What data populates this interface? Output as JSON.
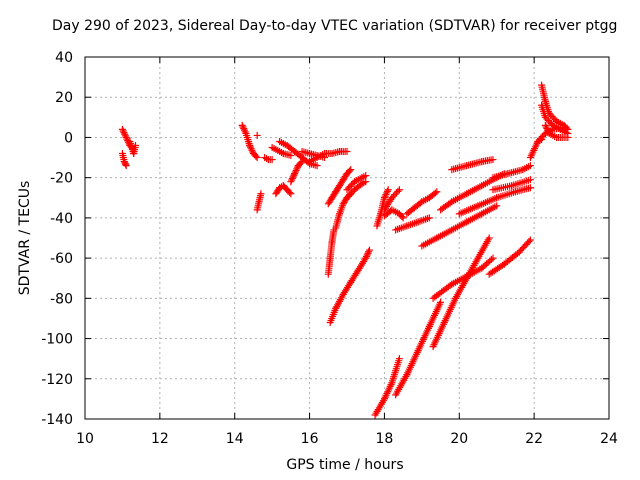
{
  "chart_data": {
    "type": "scatter",
    "title": "Day 290 of 2023, Sidereal Day-to-day VTEC variation (SDTVAR) for receiver ptgg",
    "xlabel": "GPS time / hours",
    "ylabel": "SDTVAR / TECUs",
    "xlim": [
      10,
      24
    ],
    "ylim": [
      -140,
      40
    ],
    "xticks": [
      "10",
      "12",
      "14",
      "16",
      "18",
      "20",
      "22",
      "24"
    ],
    "yticks": [
      "-140",
      "-120",
      "-100",
      "-80",
      "-60",
      "-40",
      "-20",
      "0",
      "20",
      "40"
    ],
    "grid": true,
    "marker": "+",
    "color": "#ff0000",
    "series_segments": [
      [
        [
          11.0,
          4
        ],
        [
          11.1,
          0
        ],
        [
          11.2,
          -4
        ],
        [
          11.3,
          -6
        ]
      ],
      [
        [
          11.0,
          -8
        ],
        [
          11.05,
          -12
        ],
        [
          11.1,
          -14
        ]
      ],
      [
        [
          11.2,
          -2
        ],
        [
          11.3,
          -8
        ],
        [
          11.35,
          -4
        ]
      ],
      [
        [
          14.2,
          6
        ],
        [
          14.3,
          2
        ],
        [
          14.4,
          -4
        ],
        [
          14.5,
          -8
        ],
        [
          14.6,
          -10
        ]
      ],
      [
        [
          14.6,
          1
        ]
      ],
      [
        [
          14.7,
          -28
        ],
        [
          14.65,
          -32
        ],
        [
          14.6,
          -36
        ]
      ],
      [
        [
          14.8,
          -10
        ],
        [
          14.9,
          -11
        ],
        [
          15.0,
          -11
        ]
      ],
      [
        [
          15.0,
          -5
        ],
        [
          15.3,
          -8
        ],
        [
          15.5,
          -9
        ]
      ],
      [
        [
          15.1,
          -28
        ],
        [
          15.2,
          -25
        ],
        [
          15.3,
          -24
        ],
        [
          15.4,
          -26
        ],
        [
          15.5,
          -28
        ]
      ],
      [
        [
          15.2,
          -2
        ],
        [
          15.4,
          -4
        ],
        [
          15.6,
          -7
        ],
        [
          15.8,
          -10
        ],
        [
          16.0,
          -13
        ],
        [
          16.2,
          -14
        ]
      ],
      [
        [
          15.5,
          -22
        ],
        [
          15.6,
          -18
        ],
        [
          15.7,
          -14
        ],
        [
          15.8,
          -12
        ]
      ],
      [
        [
          15.8,
          -7
        ],
        [
          16.0,
          -8
        ],
        [
          16.2,
          -9
        ],
        [
          16.4,
          -10
        ]
      ],
      [
        [
          16.0,
          -12
        ],
        [
          16.2,
          -10
        ],
        [
          16.4,
          -8
        ],
        [
          16.6,
          -8
        ],
        [
          16.8,
          -7
        ],
        [
          17.0,
          -7
        ]
      ],
      [
        [
          16.5,
          -33
        ],
        [
          16.6,
          -30
        ],
        [
          16.7,
          -27
        ],
        [
          16.8,
          -24
        ],
        [
          16.9,
          -21
        ],
        [
          17.0,
          -18
        ],
        [
          17.1,
          -16
        ]
      ],
      [
        [
          16.5,
          -68
        ],
        [
          16.55,
          -60
        ],
        [
          16.6,
          -52
        ],
        [
          16.65,
          -46
        ]
      ],
      [
        [
          16.7,
          -45
        ],
        [
          16.8,
          -38
        ],
        [
          16.9,
          -33
        ],
        [
          17.0,
          -30
        ],
        [
          17.1,
          -28
        ]
      ],
      [
        [
          16.55,
          -92
        ],
        [
          16.7,
          -85
        ],
        [
          16.9,
          -78
        ],
        [
          17.1,
          -72
        ],
        [
          17.3,
          -66
        ],
        [
          17.5,
          -60
        ],
        [
          17.6,
          -56
        ]
      ],
      [
        [
          17.0,
          -30
        ],
        [
          17.2,
          -26
        ],
        [
          17.4,
          -23
        ],
        [
          17.5,
          -22
        ]
      ],
      [
        [
          17.0,
          -26
        ],
        [
          17.2,
          -22
        ],
        [
          17.4,
          -20
        ],
        [
          17.5,
          -19
        ]
      ],
      [
        [
          17.8,
          -44
        ],
        [
          17.9,
          -38
        ],
        [
          18.0,
          -30
        ],
        [
          18.1,
          -26
        ]
      ],
      [
        [
          18.0,
          -36
        ],
        [
          18.2,
          -30
        ],
        [
          18.4,
          -26
        ]
      ],
      [
        [
          17.75,
          -138
        ],
        [
          18.0,
          -130
        ],
        [
          18.2,
          -122
        ],
        [
          18.4,
          -110
        ]
      ],
      [
        [
          18.0,
          -39
        ],
        [
          18.2,
          -36
        ],
        [
          18.4,
          -38
        ],
        [
          18.5,
          -40
        ]
      ],
      [
        [
          18.3,
          -46
        ],
        [
          18.6,
          -44
        ],
        [
          18.9,
          -42
        ],
        [
          19.2,
          -40
        ]
      ],
      [
        [
          18.6,
          -38
        ],
        [
          18.8,
          -35
        ],
        [
          19.0,
          -32
        ],
        [
          19.2,
          -30
        ],
        [
          19.4,
          -27
        ]
      ],
      [
        [
          18.3,
          -128
        ],
        [
          18.6,
          -118
        ],
        [
          18.9,
          -106
        ],
        [
          19.2,
          -94
        ],
        [
          19.5,
          -82
        ]
      ],
      [
        [
          19.0,
          -54
        ],
        [
          19.4,
          -50
        ],
        [
          19.8,
          -46
        ],
        [
          20.2,
          -42
        ],
        [
          20.6,
          -38
        ],
        [
          21.0,
          -34
        ]
      ],
      [
        [
          19.3,
          -104
        ],
        [
          19.6,
          -92
        ],
        [
          19.9,
          -80
        ],
        [
          20.2,
          -70
        ],
        [
          20.5,
          -60
        ],
        [
          20.8,
          -50
        ]
      ],
      [
        [
          19.3,
          -80
        ],
        [
          19.8,
          -73
        ],
        [
          20.2,
          -69
        ],
        [
          20.6,
          -65
        ],
        [
          20.9,
          -60
        ]
      ],
      [
        [
          19.5,
          -36
        ],
        [
          19.8,
          -32
        ],
        [
          20.2,
          -28
        ],
        [
          20.6,
          -24
        ],
        [
          21.0,
          -20
        ],
        [
          21.2,
          -18
        ]
      ],
      [
        [
          19.8,
          -16
        ],
        [
          20.2,
          -14
        ],
        [
          20.6,
          -12
        ],
        [
          20.9,
          -11
        ]
      ],
      [
        [
          20.0,
          -38
        ],
        [
          20.5,
          -34
        ],
        [
          21.0,
          -30
        ],
        [
          21.5,
          -27
        ],
        [
          21.9,
          -25
        ]
      ],
      [
        [
          20.8,
          -68
        ],
        [
          21.2,
          -63
        ],
        [
          21.6,
          -57
        ],
        [
          21.9,
          -51
        ]
      ],
      [
        [
          20.9,
          -20
        ],
        [
          21.3,
          -18
        ],
        [
          21.7,
          -16
        ],
        [
          21.9,
          -14
        ]
      ],
      [
        [
          20.9,
          -26
        ],
        [
          21.4,
          -24
        ],
        [
          21.9,
          -21
        ]
      ],
      [
        [
          21.9,
          -10
        ],
        [
          22.1,
          -2
        ],
        [
          22.3,
          2
        ],
        [
          22.5,
          4
        ],
        [
          22.8,
          5
        ]
      ],
      [
        [
          22.2,
          26
        ],
        [
          22.3,
          18
        ],
        [
          22.4,
          12
        ],
        [
          22.6,
          8
        ],
        [
          22.8,
          6
        ],
        [
          22.9,
          4
        ]
      ],
      [
        [
          22.2,
          16
        ],
        [
          22.3,
          10
        ],
        [
          22.5,
          6
        ],
        [
          22.7,
          4
        ],
        [
          22.9,
          2
        ]
      ],
      [
        [
          22.3,
          6
        ],
        [
          22.4,
          2
        ],
        [
          22.6,
          0
        ],
        [
          22.9,
          0
        ]
      ],
      [
        [
          22.2,
          -1
        ],
        [
          22.1,
          -2
        ]
      ]
    ]
  }
}
